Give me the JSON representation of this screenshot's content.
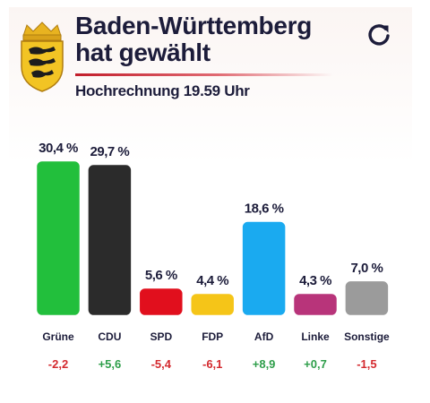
{
  "header": {
    "title_line1": "Baden-Württemberg",
    "title_line2": "hat gewählt",
    "subtitle": "Hochrechnung 19.59 Uhr",
    "coat_of_arms_icon": "baden-wuerttemberg-coat-of-arms-icon",
    "refresh_icon": "refresh-icon"
  },
  "chart_data": {
    "type": "bar",
    "title": "",
    "xlabel": "",
    "ylabel": "",
    "ylim": [
      0,
      30.4
    ],
    "categories": [
      "Grüne",
      "CDU",
      "SPD",
      "FDP",
      "AfD",
      "Linke",
      "Sonstige"
    ],
    "values": [
      30.4,
      29.7,
      5.6,
      4.4,
      18.6,
      4.3,
      7.0
    ],
    "value_labels": [
      "30,4 %",
      "29,7 %",
      "5,6 %",
      "4,4 %",
      "18,6 %",
      "4,3 %",
      "7,0 %"
    ],
    "changes": [
      "-2,2",
      "+5,6",
      "-5,4",
      "-6,1",
      "+8,9",
      "+0,7",
      "-1,5"
    ],
    "colors": [
      "#22bf3c",
      "#2b2b2b",
      "#e10f1d",
      "#f5c518",
      "#1aaaf0",
      "#b8347a",
      "#9b9b9b"
    ],
    "change_colors": {
      "positive": "#2e9e4a",
      "negative": "#d42a2f"
    },
    "grid": false,
    "legend": "none"
  }
}
